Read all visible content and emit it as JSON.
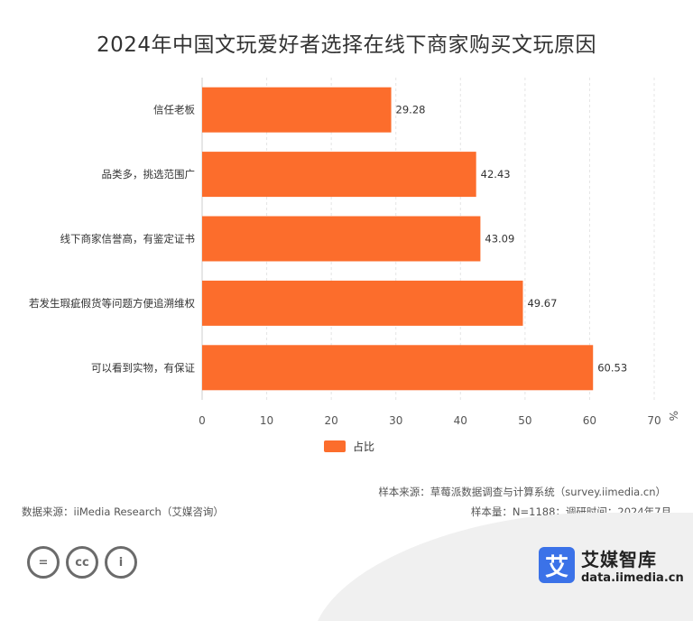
{
  "chart_data": {
    "type": "bar",
    "orientation": "horizontal",
    "title": "2024年中国文玩爱好者选择在线下商家购买文玩原因",
    "unit": "%",
    "categories": [
      "信任老板",
      "品类多，挑选范围广",
      "线下商家信誉高，有鉴定证书",
      "若发生瑕疵假货等问题方便追溯维权",
      "可以看到实物，有保证"
    ],
    "series": [
      {
        "name": "占比",
        "values": [
          29.28,
          42.43,
          43.09,
          49.67,
          60.53
        ]
      }
    ],
    "xlim": [
      0,
      70
    ],
    "xticks": [
      0,
      10,
      20,
      30,
      40,
      50,
      60,
      70
    ],
    "bar_color": "#fc6d2c",
    "grid": true,
    "legend_position": "bottom"
  },
  "footer": {
    "sample_source": "样本来源：草莓派数据调查与计算系统（survey.iimedia.cn）",
    "data_source": "数据来源：iiMedia Research（艾媒咨询）",
    "sample_info": "样本量：N=1188；调研时间：2024年7月"
  },
  "license_icons": [
    "equals-icon",
    "cc-icon",
    "person-icon"
  ],
  "license_glyphs": [
    "=",
    "cc",
    "i"
  ],
  "brand": {
    "mark": "艾",
    "name": "艾媒智库",
    "url": "data.iimedia.cn"
  }
}
